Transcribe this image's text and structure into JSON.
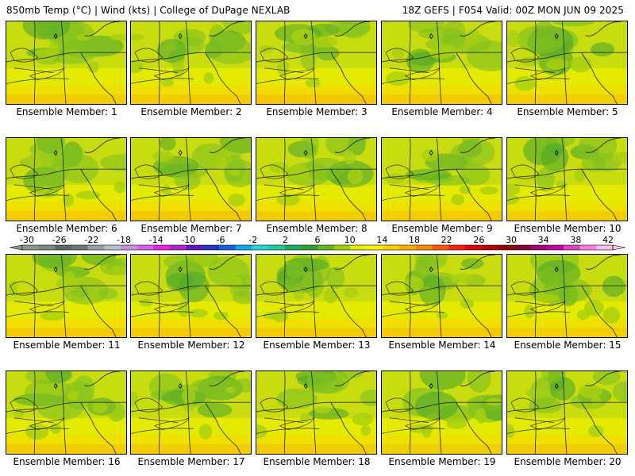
{
  "header": {
    "left": "850mb Temp (°C) | Wind (kts) | College of DuPage NEXLAB",
    "right": "18Z GEFS | F054 Valid: 00Z MON JUN 09 2025"
  },
  "members": [
    {
      "label": "Ensemble Member: 1",
      "warmth": 0.55
    },
    {
      "label": "Ensemble Member: 2",
      "warmth": 0.6
    },
    {
      "label": "Ensemble Member: 3",
      "warmth": 0.7
    },
    {
      "label": "Ensemble Member: 4",
      "warmth": 0.6
    },
    {
      "label": "Ensemble Member: 5",
      "warmth": 0.45
    },
    {
      "label": "Ensemble Member: 6",
      "warmth": 0.6
    },
    {
      "label": "Ensemble Member: 7",
      "warmth": 0.65
    },
    {
      "label": "Ensemble Member: 8",
      "warmth": 0.55
    },
    {
      "label": "Ensemble Member: 9",
      "warmth": 0.6
    },
    {
      "label": "Ensemble Member: 10",
      "warmth": 0.5
    },
    {
      "label": "Ensemble Member: 11",
      "warmth": 0.6
    },
    {
      "label": "Ensemble Member: 12",
      "warmth": 0.6
    },
    {
      "label": "Ensemble Member: 13",
      "warmth": 0.55
    },
    {
      "label": "Ensemble Member: 14",
      "warmth": 0.65
    },
    {
      "label": "Ensemble Member: 15",
      "warmth": 0.5
    },
    {
      "label": "Ensemble Member: 16",
      "warmth": 0.6
    },
    {
      "label": "Ensemble Member: 17",
      "warmth": 0.6
    },
    {
      "label": "Ensemble Member: 18",
      "warmth": 0.55
    },
    {
      "label": "Ensemble Member: 19",
      "warmth": 0.45
    },
    {
      "label": "Ensemble Member: 20",
      "warmth": 0.55
    }
  ],
  "colorbar": {
    "labels": [
      "-30",
      "-26",
      "-22",
      "-18",
      "-14",
      "-10",
      "-6",
      "-2",
      "2",
      "6",
      "10",
      "14",
      "18",
      "22",
      "26",
      "30",
      "34",
      "38",
      "42"
    ],
    "colors": [
      "#8a9a8a",
      "#7a8a7a",
      "#5a6a6a",
      "#6a7a7a",
      "#9aa0a6",
      "#b8c0d0",
      "#c890d8",
      "#d860e8",
      "#e820e8",
      "#b020c8",
      "#6010c0",
      "#2030c0",
      "#1060e0",
      "#10a8e8",
      "#20d8e0",
      "#20c8a0",
      "#18b060",
      "#30a030",
      "#60b818",
      "#a0d000",
      "#e8f000",
      "#fff000",
      "#ffd000",
      "#ffb000",
      "#ff8800",
      "#ff5800",
      "#ff2000",
      "#e00000",
      "#b80000",
      "#900000",
      "#800030",
      "#a00070",
      "#c000a0",
      "#e040c0",
      "#ff80e0",
      "#ffc0f0"
    ]
  }
}
